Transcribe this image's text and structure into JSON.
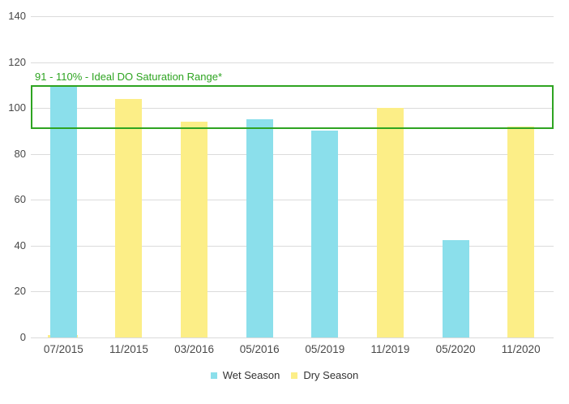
{
  "chart_data": {
    "type": "bar",
    "title": "",
    "xlabel": "",
    "ylabel": "",
    "categories": [
      "07/2015",
      "11/2015",
      "03/2016",
      "05/2016",
      "05/2019",
      "11/2019",
      "05/2020",
      "11/2020"
    ],
    "series": [
      {
        "name": "Wet Season",
        "color": "#8bdfeb",
        "values": [
          110,
          null,
          null,
          95,
          90,
          null,
          42.5,
          null
        ]
      },
      {
        "name": "Dry Season",
        "color": "#fcee87",
        "values": [
          1,
          104,
          94,
          null,
          null,
          100,
          null,
          92
        ]
      }
    ],
    "ylim": [
      0,
      140
    ],
    "yticks": [
      0,
      20,
      40,
      60,
      80,
      100,
      120,
      140
    ],
    "grid": true,
    "gridline_color": "#dbdbdb",
    "axis_text_color": "#484848",
    "legend_position": "bottom-center",
    "annotation": {
      "label": "91 - 110% - Ideal DO Saturation Range*",
      "range": [
        91,
        110
      ],
      "color": "#2ea421"
    }
  }
}
